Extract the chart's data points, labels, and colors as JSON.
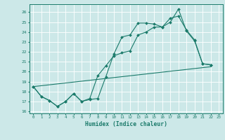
{
  "xlabel": "Humidex (Indice chaleur)",
  "bg_color": "#cce8e8",
  "grid_color": "#ffffff",
  "line_color": "#1a7a6a",
  "xlim": [
    -0.5,
    23.5
  ],
  "ylim": [
    15.8,
    26.8
  ],
  "yticks": [
    16,
    17,
    18,
    19,
    20,
    21,
    22,
    23,
    24,
    25,
    26
  ],
  "xticks": [
    0,
    1,
    2,
    3,
    4,
    5,
    6,
    7,
    8,
    9,
    10,
    11,
    12,
    13,
    14,
    15,
    16,
    17,
    18,
    19,
    20,
    21,
    22,
    23
  ],
  "series": [
    {
      "x": [
        0,
        1,
        2,
        3,
        4,
        5,
        6,
        7,
        8,
        9,
        10,
        11,
        12,
        13,
        14,
        15,
        16,
        17,
        18,
        19,
        20,
        21,
        22
      ],
      "y": [
        18.5,
        17.5,
        17.1,
        16.5,
        17.0,
        17.8,
        17.0,
        17.2,
        17.3,
        19.5,
        21.8,
        23.5,
        23.7,
        24.9,
        24.9,
        24.8,
        24.5,
        25.0,
        26.3,
        24.1,
        23.1,
        20.8,
        20.7
      ],
      "marker": true
    },
    {
      "x": [
        0,
        1,
        2,
        3,
        4,
        5,
        6,
        7,
        8,
        9,
        10,
        11,
        12,
        13,
        14,
        15,
        16,
        17,
        18,
        19,
        20,
        21,
        22
      ],
      "y": [
        18.5,
        17.5,
        17.1,
        16.5,
        17.0,
        17.8,
        17.0,
        17.3,
        19.6,
        20.6,
        21.6,
        21.9,
        22.1,
        23.7,
        24.0,
        24.5,
        24.5,
        25.4,
        25.6,
        24.2,
        23.2,
        20.8,
        20.7
      ],
      "marker": true
    },
    {
      "x": [
        0,
        22
      ],
      "y": [
        18.5,
        20.5
      ],
      "marker": false
    }
  ]
}
